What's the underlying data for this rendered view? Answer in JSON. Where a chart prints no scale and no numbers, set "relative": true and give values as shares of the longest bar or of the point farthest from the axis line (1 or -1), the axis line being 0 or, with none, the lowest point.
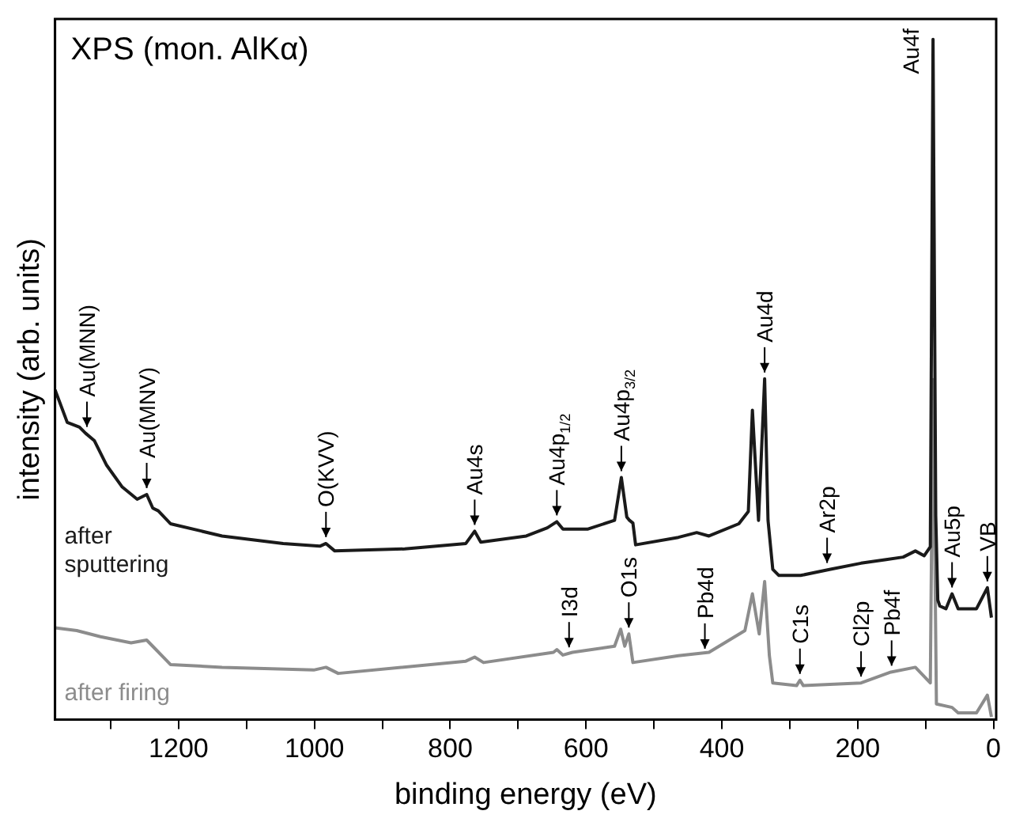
{
  "chart_data": {
    "type": "line",
    "title": "XPS (mon. AlKα)",
    "xlabel": "binding energy (eV)",
    "ylabel": "intensity (arb. units)",
    "relative": true,
    "legend": false,
    "grid": false,
    "xlim": [
      1382,
      -4
    ],
    "xticks": [
      {
        "value": 1300,
        "label": null
      },
      1200,
      {
        "value": 1100,
        "label": null
      },
      1000,
      {
        "value": 900,
        "label": null
      },
      800,
      {
        "value": 700,
        "label": null
      },
      600,
      {
        "value": 500,
        "label": null
      },
      400,
      {
        "value": 300,
        "label": null
      },
      200,
      {
        "value": 100,
        "label": null
      },
      0
    ],
    "series": [
      {
        "name": "after sputtering",
        "color": "#1a1a1a",
        "x": [
          1382,
          1364,
          1346,
          1337,
          1324,
          1306,
          1283,
          1261,
          1247,
          1238,
          1230,
          1212,
          1136,
          1046,
          992,
          983,
          970,
          867,
          777,
          764,
          755,
          688,
          657,
          643,
          634,
          598,
          558,
          548,
          540,
          536,
          531,
          527,
          464,
          437,
          419,
          375,
          361,
          355,
          346,
          337,
          332,
          325,
          316,
          284,
          240,
          195,
          160,
          133,
          115,
          102,
          93,
          89,
          85,
          82,
          79,
          70,
          61,
          52,
          25,
          9,
          3
        ],
        "values": [
          0.485,
          0.437,
          0.43,
          0.421,
          0.41,
          0.374,
          0.342,
          0.324,
          0.331,
          0.311,
          0.307,
          0.288,
          0.27,
          0.259,
          0.255,
          0.259,
          0.248,
          0.251,
          0.259,
          0.277,
          0.261,
          0.27,
          0.282,
          0.291,
          0.28,
          0.28,
          0.293,
          0.356,
          0.298,
          0.293,
          0.289,
          0.257,
          0.268,
          0.275,
          0.27,
          0.288,
          0.306,
          0.455,
          0.293,
          0.501,
          0.293,
          0.221,
          0.212,
          0.212,
          0.221,
          0.23,
          0.235,
          0.239,
          0.248,
          0.241,
          0.254,
          1.0,
          0.3,
          0.176,
          0.167,
          0.163,
          0.185,
          0.163,
          0.163,
          0.194,
          0.15
        ]
      },
      {
        "name": "after firing",
        "color": "#8c8c8c",
        "x": [
          1382,
          1350,
          1315,
          1270,
          1247,
          1212,
          1136,
          1001,
          983,
          965,
          777,
          764,
          751,
          648,
          643,
          634,
          620,
          558,
          549,
          543,
          537,
          531,
          464,
          419,
          366,
          355,
          345,
          337,
          330,
          325,
          290,
          285,
          280,
          195,
          151,
          115,
          93,
          89,
          84,
          61,
          52,
          25,
          9,
          3
        ],
        "values": [
          0.135,
          0.131,
          0.122,
          0.113,
          0.117,
          0.081,
          0.077,
          0.073,
          0.077,
          0.068,
          0.086,
          0.092,
          0.084,
          0.099,
          0.103,
          0.095,
          0.099,
          0.108,
          0.133,
          0.108,
          0.126,
          0.084,
          0.094,
          0.099,
          0.131,
          0.185,
          0.126,
          0.203,
          0.094,
          0.054,
          0.05,
          0.058,
          0.05,
          0.054,
          0.07,
          0.077,
          0.054,
          0.5,
          0.023,
          0.018,
          0.01,
          0.01,
          0.036,
          0.004
        ]
      }
    ],
    "annotations": [
      {
        "text": "Au(MNN)",
        "x": 1335,
        "y": 0.421
      },
      {
        "text": "Au(MNV)",
        "x": 1247,
        "y": 0.331
      },
      {
        "text": "O(KVV)",
        "x": 983,
        "y": 0.259
      },
      {
        "text": "Au4s",
        "x": 764,
        "y": 0.277
      },
      {
        "text": "Au4p$_{1/2}$",
        "x": 643,
        "y": 0.291
      },
      {
        "text": "Au4p$_{3/2}$",
        "x": 548,
        "y": 0.356
      },
      {
        "text": "Au4d",
        "x": 337,
        "y": 0.501
      },
      {
        "text": "Au4f",
        "x": 89,
        "y": 1.0
      },
      {
        "text": "Ar2p",
        "x": 245,
        "y": 0.221
      },
      {
        "text": "Au5p",
        "x": 61,
        "y": 0.185
      },
      {
        "text": "VB",
        "x": 9,
        "y": 0.194
      },
      {
        "text": "I3d",
        "x": 625,
        "y": 0.097
      },
      {
        "text": "O1s",
        "x": 537,
        "y": 0.126
      },
      {
        "text": "Pb4d",
        "x": 425,
        "y": 0.095
      },
      {
        "text": "C1s",
        "x": 285,
        "y": 0.058
      },
      {
        "text": "Cl2p",
        "x": 195,
        "y": 0.054
      },
      {
        "text": "Pb4f",
        "x": 150,
        "y": 0.07
      }
    ]
  }
}
